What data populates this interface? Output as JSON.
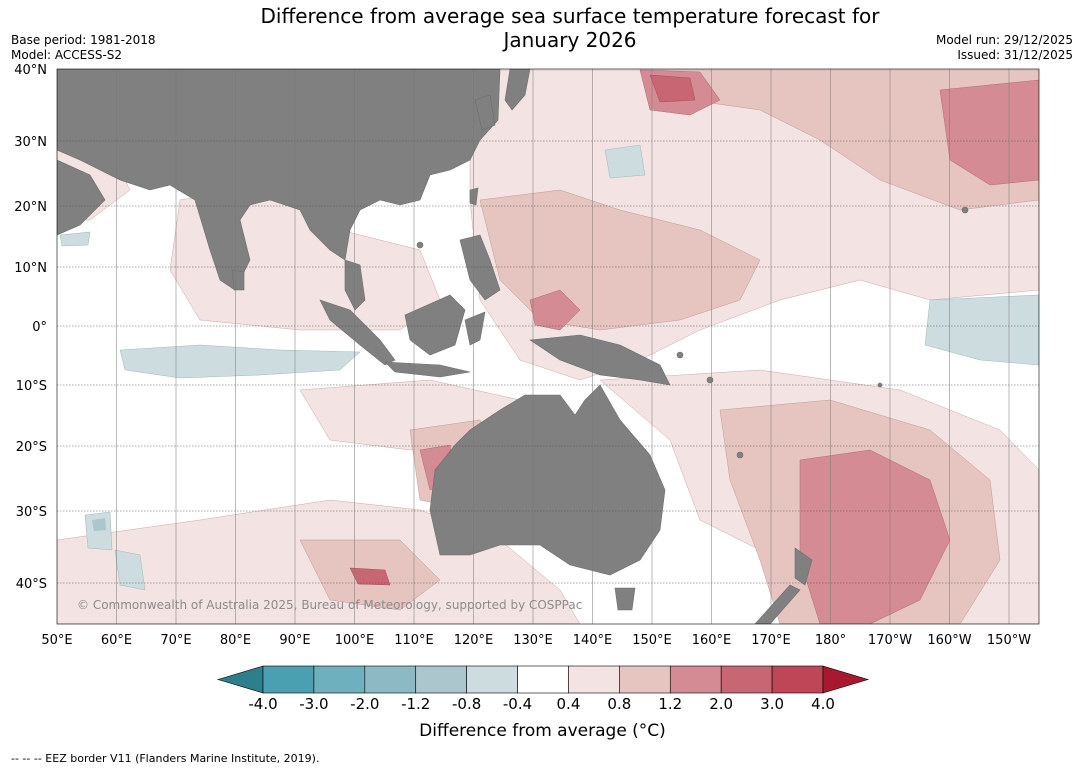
{
  "title": {
    "line1": "Difference from average sea surface temperature forecast for",
    "line2": "January 2026"
  },
  "meta": {
    "base_period": "Base period: 1981-2018",
    "model": "Model: ACCESS-S2",
    "model_run": "Model run: 29/12/2025",
    "issued": "Issued: 31/12/2025"
  },
  "map": {
    "lat_labels": [
      "40°N",
      "30°N",
      "20°N",
      "10°N",
      "0°",
      "10°S",
      "20°S",
      "30°S",
      "40°S"
    ],
    "lon_labels": [
      "50°E",
      "60°E",
      "70°E",
      "80°E",
      "90°E",
      "100°E",
      "110°E",
      "120°E",
      "130°E",
      "140°E",
      "150°E",
      "160°E",
      "170°E",
      "180°",
      "170°W",
      "160°W",
      "150°W"
    ],
    "copyright": "© Commonwealth of Australia 2025, Bureau of Meteorology, supported by COSPPac"
  },
  "colorbar": {
    "ticks": [
      "-4.0",
      "-3.0",
      "-2.0",
      "-1.2",
      "-0.8",
      "-0.4",
      "0.4",
      "0.8",
      "1.2",
      "2.0",
      "3.0",
      "4.0"
    ],
    "colors": [
      "#2d7f8c",
      "#4aa0b1",
      "#6fb0be",
      "#8db9c4",
      "#abc6cc",
      "#cddcde",
      "#ffffff",
      "#f3e3e2",
      "#e6c4c0",
      "#d48b93",
      "#c96673",
      "#bf4656",
      "#a8182f"
    ],
    "label": "Difference from average (°C)"
  },
  "source_note": "--  --  -- EEZ border V11 (Flanders Marine Institute, 2019).",
  "colors": {
    "land": "#808080",
    "ocean_neutral": "#ffffff",
    "grid": "#555555"
  }
}
